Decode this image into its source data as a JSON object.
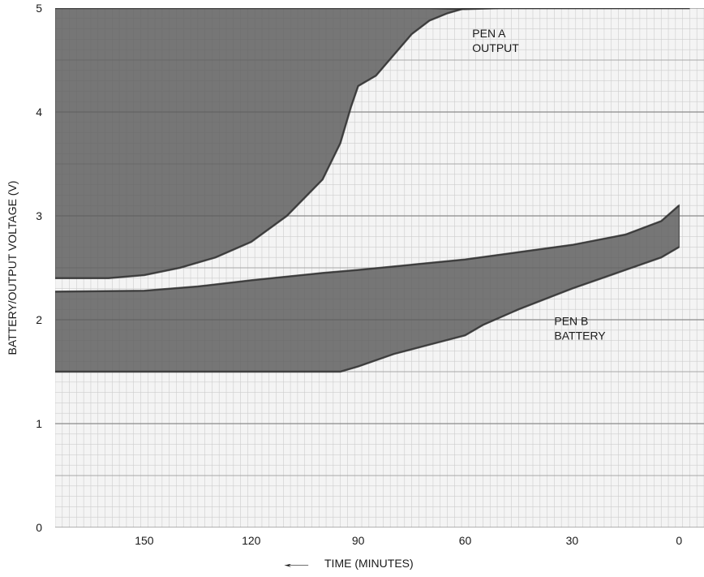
{
  "chart_data": {
    "type": "area",
    "xlabel": "TIME (MINUTES)",
    "xlabel_arrow": "←",
    "ylabel": "BATTERY/OUTPUT VOLTAGE (V)",
    "x_reversed": true,
    "xlim": [
      175,
      -7
    ],
    "ylim": [
      0,
      5
    ],
    "grid": true,
    "x_ticks": [
      150,
      120,
      90,
      60,
      30,
      0
    ],
    "y_ticks": [
      0,
      1,
      2,
      3,
      4,
      5
    ],
    "annotations": [
      {
        "lines": [
          "PEN A",
          "OUTPUT"
        ],
        "x": 58,
        "y": 4.72
      },
      {
        "lines": [
          "PEN B",
          "BATTERY"
        ],
        "x": 35,
        "y": 1.95
      }
    ],
    "series": [
      {
        "id": "pen-a",
        "color": "#5a5a5a",
        "upper": [
          [
            175,
            5.0
          ],
          [
            150,
            5.0
          ],
          [
            120,
            5.0
          ],
          [
            100,
            5.0
          ],
          [
            90,
            5.0
          ],
          [
            80,
            5.0
          ],
          [
            70,
            5.0
          ],
          [
            60,
            4.99
          ],
          [
            50,
            5.0
          ],
          [
            30,
            5.0
          ],
          [
            10,
            5.0
          ],
          [
            -3,
            5.0
          ]
        ],
        "lower": [
          [
            175,
            2.4
          ],
          [
            160,
            2.4
          ],
          [
            150,
            2.43
          ],
          [
            140,
            2.5
          ],
          [
            130,
            2.6
          ],
          [
            120,
            2.75
          ],
          [
            110,
            3.0
          ],
          [
            100,
            3.35
          ],
          [
            95,
            3.7
          ],
          [
            92,
            4.05
          ],
          [
            90,
            4.25
          ],
          [
            85,
            4.35
          ],
          [
            80,
            4.55
          ],
          [
            75,
            4.75
          ],
          [
            70,
            4.88
          ],
          [
            65,
            4.95
          ],
          [
            60,
            5.0
          ],
          [
            -3,
            5.0
          ]
        ]
      },
      {
        "id": "pen-b",
        "color": "#5a5a5a",
        "upper": [
          [
            175,
            2.27
          ],
          [
            150,
            2.28
          ],
          [
            135,
            2.32
          ],
          [
            120,
            2.38
          ],
          [
            100,
            2.45
          ],
          [
            90,
            2.48
          ],
          [
            75,
            2.53
          ],
          [
            60,
            2.58
          ],
          [
            45,
            2.65
          ],
          [
            30,
            2.72
          ],
          [
            15,
            2.82
          ],
          [
            5,
            2.95
          ],
          [
            0,
            3.1
          ]
        ],
        "lower": [
          [
            175,
            1.5
          ],
          [
            150,
            1.5
          ],
          [
            120,
            1.5
          ],
          [
            100,
            1.5
          ],
          [
            95,
            1.5
          ],
          [
            90,
            1.55
          ],
          [
            80,
            1.67
          ],
          [
            70,
            1.76
          ],
          [
            60,
            1.85
          ],
          [
            55,
            1.95
          ],
          [
            45,
            2.1
          ],
          [
            30,
            2.3
          ],
          [
            15,
            2.48
          ],
          [
            5,
            2.6
          ],
          [
            0,
            2.7
          ]
        ]
      }
    ]
  }
}
